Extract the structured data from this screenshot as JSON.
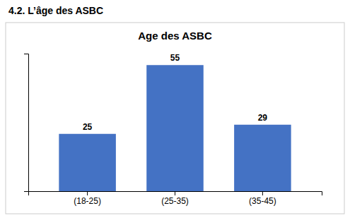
{
  "chart_data": {
    "type": "bar",
    "title": "Age des ASBC",
    "subtitle": "4.2. L’âge des ASBC",
    "categories": [
      "(18-25)",
      "(25-35)",
      "(35-45)"
    ],
    "values": [
      25,
      55,
      29
    ],
    "color": "#4472C4",
    "ylim": [
      0,
      60
    ],
    "data_labels": true,
    "tick_labels": "x"
  }
}
